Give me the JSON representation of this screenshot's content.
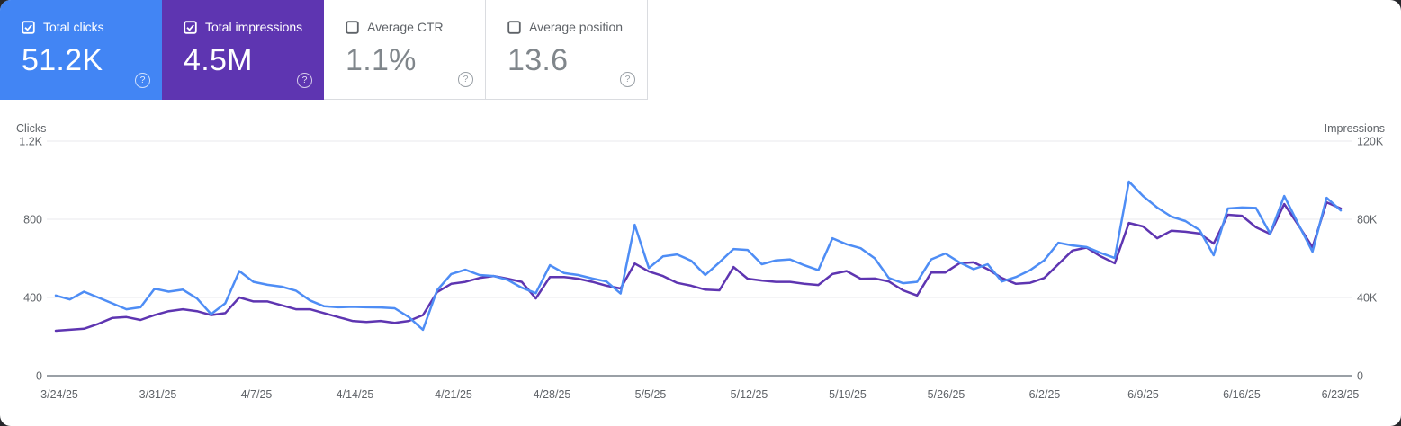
{
  "cards": [
    {
      "label": "Total clicks",
      "value": "51.2K",
      "checked": true,
      "bg": "#4285f4"
    },
    {
      "label": "Total impressions",
      "value": "4.5M",
      "checked": true,
      "bg": "#5e35b1"
    },
    {
      "label": "Average CTR",
      "value": "1.1%",
      "checked": false,
      "bg": "#ffffff"
    },
    {
      "label": "Average position",
      "value": "13.6",
      "checked": false,
      "bg": "#ffffff"
    }
  ],
  "icons": {
    "help_glyph": "?"
  },
  "chart_data": {
    "type": "line",
    "title": "",
    "legend": "none",
    "grid": "horizontal",
    "x_tick_labels": [
      "3/24/25",
      "3/31/25",
      "4/7/25",
      "4/14/25",
      "4/21/25",
      "4/28/25",
      "5/5/25",
      "5/12/25",
      "5/19/25",
      "5/26/25",
      "6/2/25",
      "6/9/25",
      "6/16/25",
      "6/23/25"
    ],
    "left_axis": {
      "title": "Clicks",
      "tick_labels": [
        "0",
        "400",
        "800",
        "1.2K"
      ],
      "max": 1200
    },
    "right_axis": {
      "title": "Impressions",
      "tick_labels": [
        "0",
        "40K",
        "80K",
        "120K"
      ],
      "max": 120000
    },
    "series": [
      {
        "name": "Total clicks",
        "axis": "left",
        "color": "#4e8df5",
        "values": [
          410,
          390,
          430,
          400,
          370,
          340,
          350,
          445,
          430,
          440,
          395,
          315,
          370,
          535,
          480,
          465,
          455,
          435,
          385,
          355,
          350,
          352,
          350,
          349,
          345,
          300,
          235,
          437,
          520,
          542,
          515,
          510,
          490,
          450,
          422,
          565,
          525,
          515,
          497,
          482,
          420,
          772,
          551,
          610,
          620,
          588,
          515,
          580,
          648,
          643,
          570,
          590,
          595,
          565,
          540,
          703,
          672,
          652,
          600,
          500,
          473,
          480,
          595,
          625,
          580,
          545,
          570,
          482,
          505,
          540,
          590,
          680,
          666,
          658,
          628,
          602,
          993,
          919,
          860,
          814,
          791,
          745,
          616,
          855,
          860,
          858,
          727,
          919,
          775,
          634,
          910,
          845
        ]
      },
      {
        "name": "Total impressions",
        "axis": "right",
        "color": "#5e35b1",
        "values": [
          23000,
          23500,
          24000,
          26500,
          29500,
          30000,
          28500,
          31000,
          33000,
          34000,
          33000,
          31000,
          32000,
          40000,
          38000,
          38000,
          36000,
          34000,
          34000,
          32000,
          30000,
          28000,
          27500,
          28000,
          27000,
          28000,
          31000,
          42700,
          47000,
          48000,
          50000,
          51000,
          49600,
          48000,
          39500,
          50500,
          50500,
          49600,
          48000,
          46000,
          44600,
          57400,
          53300,
          51000,
          47500,
          46000,
          44000,
          43700,
          55600,
          49600,
          48700,
          48000,
          48000,
          47000,
          46400,
          52000,
          53500,
          49600,
          49700,
          48200,
          43700,
          41000,
          52800,
          52800,
          57500,
          58000,
          54500,
          50000,
          47000,
          47500,
          50000,
          57000,
          64000,
          65500,
          61000,
          57500,
          78100,
          76300,
          70300,
          74100,
          73600,
          72700,
          67600,
          82300,
          81800,
          75900,
          72500,
          87800,
          77000,
          65700,
          88700,
          85500
        ]
      }
    ]
  }
}
